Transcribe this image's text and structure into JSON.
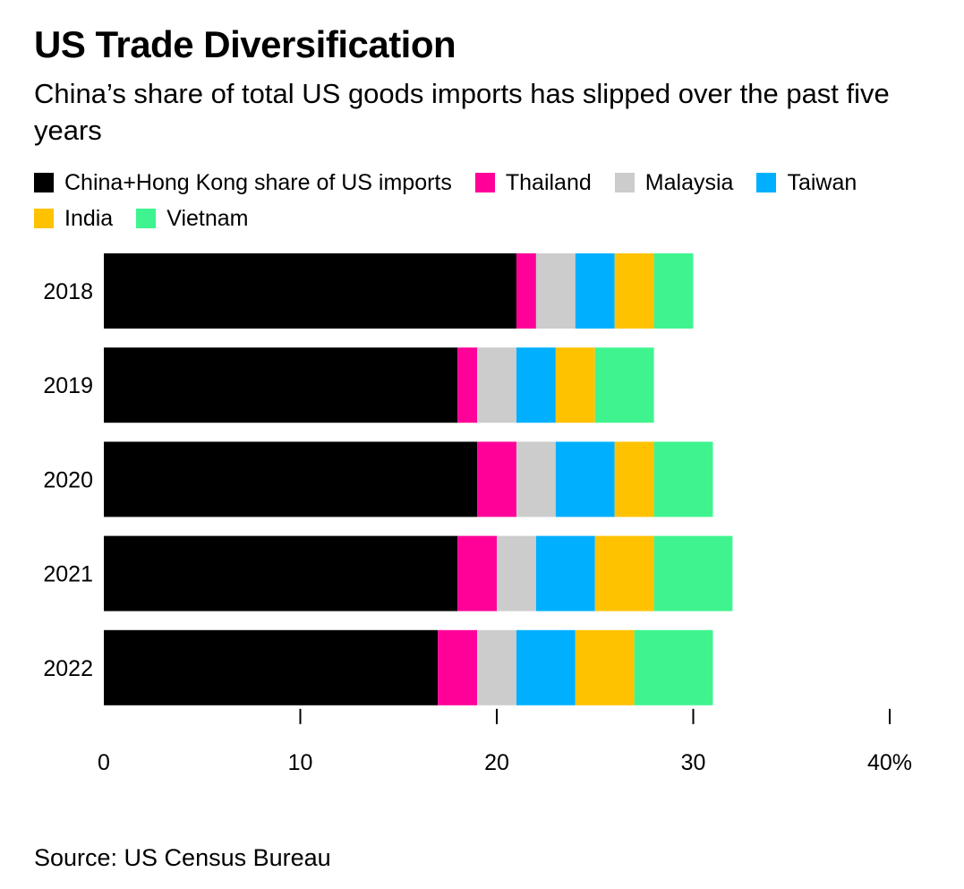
{
  "header": {
    "title": "US Trade Diversification",
    "subtitle": "China’s share of total US goods imports has slipped over the past five years"
  },
  "footer": {
    "source": "Source: US Census Bureau"
  },
  "chart_data": {
    "type": "bar",
    "orientation": "horizontal",
    "stacked": true,
    "title": "US Trade Diversification",
    "subtitle": "China’s share of total US goods imports has slipped over the past five years",
    "categories": [
      "2018",
      "2019",
      "2020",
      "2021",
      "2022"
    ],
    "series": [
      {
        "name": "China+Hong Kong share of US imports",
        "color": "#000000",
        "values": [
          21,
          18,
          19,
          18,
          17
        ]
      },
      {
        "name": "Thailand",
        "color": "#ff0099",
        "values": [
          1,
          1,
          2,
          2,
          2
        ]
      },
      {
        "name": "Malaysia",
        "color": "#cccccc",
        "values": [
          2,
          2,
          2,
          2,
          2
        ]
      },
      {
        "name": "Taiwan",
        "color": "#00b0ff",
        "values": [
          2,
          2,
          3,
          3,
          3
        ]
      },
      {
        "name": "India",
        "color": "#ffc200",
        "values": [
          2,
          2,
          2,
          3,
          3
        ]
      },
      {
        "name": "Vietnam",
        "color": "#3ff48f",
        "values": [
          2,
          3,
          3,
          4,
          4
        ]
      }
    ],
    "x_ticks": [
      0,
      10,
      20,
      30,
      40
    ],
    "x_tick_labels": [
      "0",
      "10",
      "20",
      "30",
      "40%"
    ],
    "xlim": [
      0,
      40
    ],
    "grid": false,
    "legend_position": "top-left"
  }
}
